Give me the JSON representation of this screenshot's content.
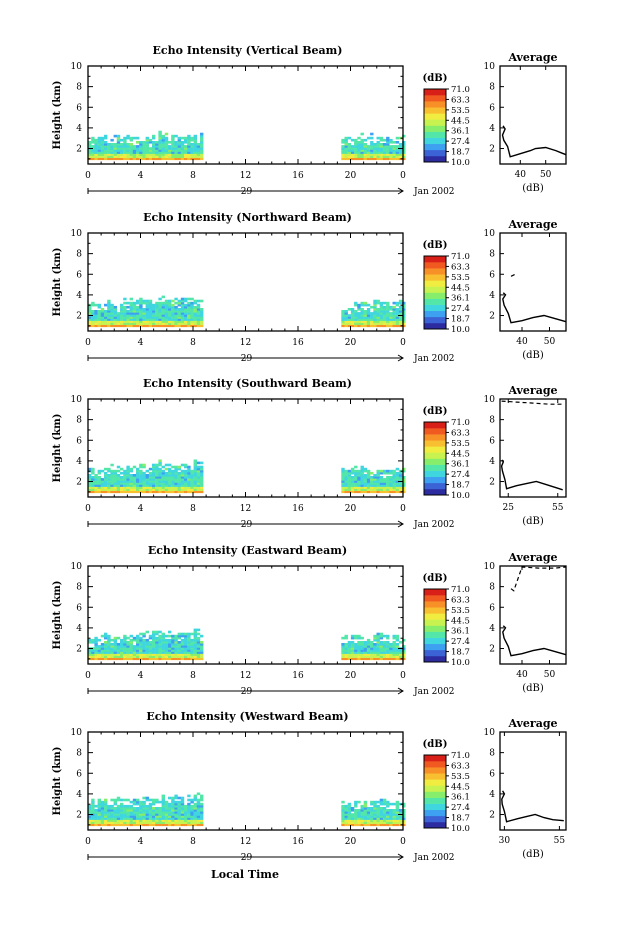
{
  "figure": {
    "xlabel": "Local Time",
    "date_label": "Jan 2002",
    "day_label": "29",
    "ylabel": "Height (km)",
    "avg_title": "Average",
    "avg_xlabel": "(dB)",
    "colorbar_unit": "(dB)",
    "colorbar_ticks": [
      "71.0",
      "63.3",
      "53.5",
      "44.5",
      "36.1",
      "27.4",
      "18.7",
      "10.0"
    ],
    "colorbar_colors": [
      "#2c2ca0",
      "#3b63d6",
      "#3ea0f0",
      "#40d6e0",
      "#52e6a8",
      "#86ee6a",
      "#c8f250",
      "#f0ec40",
      "#f8c030",
      "#f89028",
      "#f05a20",
      "#d82018"
    ]
  },
  "chart_data": [
    {
      "type": "heatmap",
      "title": "Echo Intensity (Vertical Beam)",
      "xlabel": "Local Time",
      "ylabel": "Height (km)",
      "xticks": [
        "0",
        "4",
        "8",
        "12",
        "16",
        "20",
        "0"
      ],
      "xlim": [
        0,
        24
      ],
      "yticks": [
        "2",
        "4",
        "6",
        "8",
        "10"
      ],
      "ylim": [
        0.5,
        10
      ],
      "colorbar": {
        "label": "(dB)",
        "range": [
          10.0,
          71.0
        ]
      },
      "echo_segments": [
        {
          "start_hour": 0.0,
          "end_hour": 8.8,
          "top_km": [
            3.0,
            3.1,
            3.0,
            3.2,
            3.0,
            3.1,
            3.3,
            3.2,
            3.0,
            3.4
          ],
          "dominant_db": 30
        },
        {
          "start_hour": 19.3,
          "end_hour": 24.0,
          "top_km": [
            3.0,
            3.2,
            3.1,
            3.0,
            2.9,
            3.1
          ],
          "dominant_db": 30
        }
      ],
      "average_profile": {
        "title": "Average",
        "xlabel": "(dB)",
        "xticks": [
          "40",
          "50"
        ],
        "xlim": [
          32,
          58
        ],
        "ylim": [
          0.5,
          10
        ],
        "yticks": [
          "2",
          "4",
          "6",
          "8",
          "10"
        ],
        "points": [
          [
            36,
            1.2
          ],
          [
            40,
            1.5
          ],
          [
            44,
            1.8
          ],
          [
            46,
            2.0
          ],
          [
            50,
            2.1
          ],
          [
            54,
            1.8
          ],
          [
            56,
            1.6
          ],
          [
            58,
            1.4
          ]
        ],
        "upper": [
          [
            35,
            2.2
          ],
          [
            33.5,
            2.8
          ],
          [
            33,
            3.3
          ],
          [
            34,
            3.9
          ],
          [
            33.2,
            4.2
          ]
        ],
        "extra": []
      }
    },
    {
      "type": "heatmap",
      "title": "Echo Intensity (Northward Beam)",
      "xlabel": "Local Time",
      "ylabel": "Height (km)",
      "xticks": [
        "0",
        "4",
        "8",
        "12",
        "16",
        "20",
        "0"
      ],
      "xlim": [
        0,
        24
      ],
      "yticks": [
        "2",
        "4",
        "6",
        "8",
        "10"
      ],
      "ylim": [
        0.5,
        10
      ],
      "colorbar": {
        "label": "(dB)",
        "range": [
          10.0,
          71.0
        ]
      },
      "echo_segments": [
        {
          "start_hour": 0.0,
          "end_hour": 8.8,
          "top_km": [
            3.2,
            3.3,
            3.0,
            3.4,
            3.5,
            3.3,
            3.6,
            3.4,
            3.7,
            3.5
          ],
          "dominant_db": 30
        },
        {
          "start_hour": 19.3,
          "end_hour": 24.0,
          "top_km": [
            3.0,
            3.2,
            3.1,
            3.3,
            3.0,
            3.1
          ],
          "dominant_db": 30
        }
      ],
      "average_profile": {
        "title": "Average",
        "xlabel": "(dB)",
        "xticks": [
          "40",
          "50"
        ],
        "xlim": [
          32,
          56
        ],
        "ylim": [
          0.5,
          10
        ],
        "yticks": [
          "2",
          "4",
          "6",
          "8",
          "10"
        ],
        "points": [
          [
            36,
            1.3
          ],
          [
            40,
            1.5
          ],
          [
            44,
            1.8
          ],
          [
            48,
            2.0
          ],
          [
            52,
            1.7
          ],
          [
            56,
            1.4
          ]
        ],
        "upper": [
          [
            35,
            2.2
          ],
          [
            33.5,
            3.0
          ],
          [
            33,
            3.6
          ],
          [
            34,
            4.0
          ],
          [
            33.2,
            4.2
          ]
        ],
        "extra": [
          [
            36,
            5.8
          ],
          [
            37.5,
            6.0
          ]
        ]
      }
    },
    {
      "type": "heatmap",
      "title": "Echo Intensity (Southward Beam)",
      "xlabel": "Local Time",
      "ylabel": "Height (km)",
      "xticks": [
        "0",
        "4",
        "8",
        "12",
        "16",
        "20",
        "0"
      ],
      "xlim": [
        0,
        24
      ],
      "yticks": [
        "2",
        "4",
        "6",
        "8",
        "10"
      ],
      "ylim": [
        0.5,
        10
      ],
      "colorbar": {
        "label": "(dB)",
        "range": [
          10.0,
          71.0
        ]
      },
      "echo_segments": [
        {
          "start_hour": 0.0,
          "end_hour": 8.8,
          "top_km": [
            3.1,
            3.3,
            3.2,
            3.4,
            3.6,
            3.5,
            3.7,
            3.6,
            3.5,
            3.8
          ],
          "dominant_db": 30
        },
        {
          "start_hour": 19.3,
          "end_hour": 24.0,
          "top_km": [
            3.0,
            3.3,
            3.1,
            3.2,
            3.0,
            3.2
          ],
          "dominant_db": 30
        }
      ],
      "average_profile": {
        "title": "Average",
        "xlabel": "(dB)",
        "xticks": [
          "25",
          "55"
        ],
        "xlim": [
          20,
          60
        ],
        "ylim": [
          0.5,
          10
        ],
        "yticks": [
          "2",
          "4",
          "6",
          "8",
          "10"
        ],
        "points": [
          [
            24,
            1.3
          ],
          [
            30,
            1.6
          ],
          [
            36,
            1.8
          ],
          [
            42,
            2.0
          ],
          [
            48,
            1.7
          ],
          [
            54,
            1.4
          ],
          [
            58,
            1.2
          ]
        ],
        "upper": [
          [
            23,
            2.2
          ],
          [
            21.5,
            3.0
          ],
          [
            21,
            3.5
          ],
          [
            22,
            3.9
          ],
          [
            21.2,
            4.1
          ]
        ],
        "extra": [
          [
            21,
            9.8
          ],
          [
            30,
            9.7
          ],
          [
            40,
            9.6
          ],
          [
            50,
            9.5
          ],
          [
            58,
            9.5
          ]
        ]
      }
    },
    {
      "type": "heatmap",
      "title": "Echo Intensity (Eastward Beam)",
      "xlabel": "Local Time",
      "ylabel": "Height (km)",
      "xticks": [
        "0",
        "4",
        "8",
        "12",
        "16",
        "20",
        "0"
      ],
      "xlim": [
        0,
        24
      ],
      "yticks": [
        "2",
        "4",
        "6",
        "8",
        "10"
      ],
      "ylim": [
        0.5,
        10
      ],
      "colorbar": {
        "label": "(dB)",
        "range": [
          10.0,
          71.0
        ]
      },
      "echo_segments": [
        {
          "start_hour": 0.0,
          "end_hour": 8.8,
          "top_km": [
            3.0,
            3.2,
            3.1,
            3.3,
            3.4,
            3.5,
            3.6,
            3.4,
            3.5,
            3.7
          ],
          "dominant_db": 30
        },
        {
          "start_hour": 19.3,
          "end_hour": 24.0,
          "top_km": [
            3.0,
            3.2,
            3.0,
            3.1,
            3.0,
            3.1
          ],
          "dominant_db": 30
        }
      ],
      "average_profile": {
        "title": "Average",
        "xlabel": "(dB)",
        "xticks": [
          "40",
          "50"
        ],
        "xlim": [
          32,
          56
        ],
        "ylim": [
          0.5,
          10
        ],
        "yticks": [
          "2",
          "4",
          "6",
          "8",
          "10"
        ],
        "points": [
          [
            36,
            1.3
          ],
          [
            40,
            1.5
          ],
          [
            44,
            1.8
          ],
          [
            48,
            2.0
          ],
          [
            52,
            1.7
          ],
          [
            56,
            1.4
          ]
        ],
        "upper": [
          [
            35,
            2.2
          ],
          [
            33.5,
            3.0
          ],
          [
            33,
            3.6
          ],
          [
            34,
            4.0
          ],
          [
            33.2,
            4.2
          ]
        ],
        "extra": [
          [
            36,
            7.8
          ],
          [
            37,
            7.6
          ],
          [
            40,
            9.9
          ],
          [
            46,
            9.8
          ],
          [
            52,
            9.8
          ],
          [
            56,
            9.9
          ]
        ]
      }
    },
    {
      "type": "heatmap",
      "title": "Echo Intensity (Westward Beam)",
      "xlabel": "Local Time",
      "ylabel": "Height (km)",
      "xticks": [
        "0",
        "4",
        "8",
        "12",
        "16",
        "20",
        "0"
      ],
      "xlim": [
        0,
        24
      ],
      "yticks": [
        "2",
        "4",
        "6",
        "8",
        "10"
      ],
      "ylim": [
        0.5,
        10
      ],
      "colorbar": {
        "label": "(dB)",
        "range": [
          10.0,
          71.0
        ]
      },
      "echo_segments": [
        {
          "start_hour": 0.0,
          "end_hour": 8.8,
          "top_km": [
            3.2,
            3.3,
            3.4,
            3.3,
            3.5,
            3.6,
            3.5,
            3.7,
            3.6,
            3.8
          ],
          "dominant_db": 30
        },
        {
          "start_hour": 19.3,
          "end_hour": 24.0,
          "top_km": [
            3.0,
            3.2,
            3.1,
            3.3,
            3.1,
            3.2
          ],
          "dominant_db": 30
        }
      ],
      "average_profile": {
        "title": "Average",
        "xlabel": "(dB)",
        "xticks": [
          "30",
          "55"
        ],
        "xlim": [
          28,
          58
        ],
        "ylim": [
          0.5,
          10
        ],
        "yticks": [
          "2",
          "4",
          "6",
          "8",
          "10"
        ],
        "points": [
          [
            31,
            1.3
          ],
          [
            36,
            1.6
          ],
          [
            40,
            1.8
          ],
          [
            44,
            2.0
          ],
          [
            48,
            1.7
          ],
          [
            52,
            1.5
          ],
          [
            57,
            1.4
          ]
        ],
        "upper": [
          [
            30,
            2.3
          ],
          [
            29,
            3.0
          ],
          [
            28.8,
            3.5
          ],
          [
            30,
            4.0
          ],
          [
            29.2,
            4.3
          ]
        ],
        "extra": []
      }
    }
  ]
}
